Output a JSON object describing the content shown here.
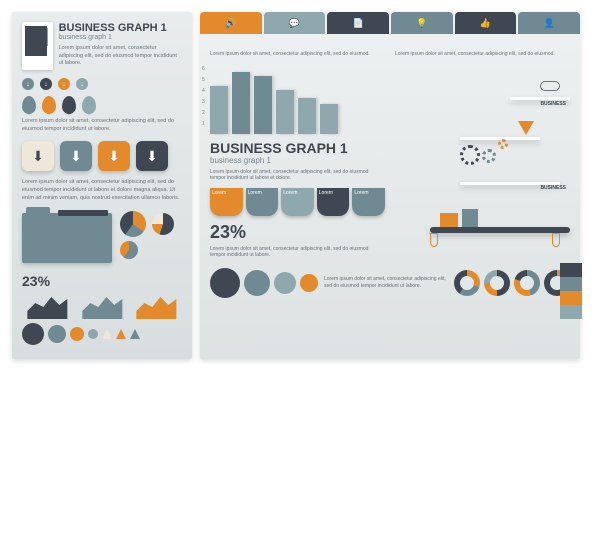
{
  "palette": {
    "dark": "#3f4852",
    "teal": "#6f8a92",
    "lteal": "#8fa8ae",
    "orange": "#e38b2c",
    "cream": "#efe8da",
    "bg": "#e2e7e8",
    "white": "#ffffff"
  },
  "left": {
    "title": "BUSINESS GRAPH 1",
    "subtitle": "business graph 1",
    "lorem": "Lorem ipsum dolor sit amet, consectetur adipiscing elit, sed do eiusmod tempor incididunt ut labore.",
    "dots": [
      {
        "c": "#6f8a92"
      },
      {
        "c": "#3f4852"
      },
      {
        "c": "#e38b2c"
      },
      {
        "c": "#8fa8ae"
      }
    ],
    "pins": [
      {
        "c": "#6f8a92"
      },
      {
        "c": "#e38b2c"
      },
      {
        "c": "#3f4852"
      },
      {
        "c": "#8fa8ae"
      }
    ],
    "buttons": [
      {
        "c": "#efe8da",
        "fg": "#3f4852"
      },
      {
        "c": "#6f8a92"
      },
      {
        "c": "#e38b2c"
      },
      {
        "c": "#3f4852"
      }
    ],
    "lorem2": "Lorem ipsum dolor sit amet, consectetur adipiscing elit, sed do eiusmod tempor incididunt ut labore et dolore magna aliqua. Ut enim ad minim veniam, quis nostrud exercitation ullamco laboris.",
    "pies": [
      {
        "size": 26,
        "slices": [
          [
            "#e38b2c",
            35
          ],
          [
            "#6f8a92",
            25
          ],
          [
            "#3f4852",
            40
          ]
        ]
      },
      {
        "size": 22,
        "slices": [
          [
            "#3f4852",
            55
          ],
          [
            "#e38b2c",
            20
          ],
          [
            "#efe8da",
            25
          ]
        ]
      },
      {
        "size": 18,
        "slices": [
          [
            "#6f8a92",
            60
          ],
          [
            "#e38b2c",
            40
          ]
        ]
      }
    ],
    "percent": "23%",
    "areas": [
      {
        "c": "#3f4852"
      },
      {
        "c": "#6f8a92"
      },
      {
        "c": "#e38b2c"
      }
    ],
    "bottom_circles": [
      {
        "size": 22,
        "c": "#3f4852"
      },
      {
        "size": 18,
        "c": "#6f8a92"
      },
      {
        "size": 14,
        "c": "#e38b2c"
      },
      {
        "size": 10,
        "c": "#8fa8ae"
      }
    ],
    "triangles": [
      {
        "c": "#efe8da"
      },
      {
        "c": "#e38b2c"
      },
      {
        "c": "#6f8a92"
      }
    ]
  },
  "right": {
    "tabs": [
      {
        "c": "#e38b2c",
        "i": "speaker"
      },
      {
        "c": "#8fa8ae",
        "i": "chat"
      },
      {
        "c": "#3f4852",
        "i": "doc"
      },
      {
        "c": "#6f8a92",
        "i": "bulb"
      },
      {
        "c": "#3f4852",
        "i": "thumb"
      },
      {
        "c": "#6f8a92",
        "i": "person"
      }
    ],
    "col_lorem": "Lorem ipsum dolor sit amet, consectetur adipiscing elit, sed do eiusmod.",
    "bars": {
      "labels": [
        "1",
        "2",
        "3",
        "4",
        "5",
        "6"
      ],
      "values": [
        48,
        62,
        58,
        44,
        36,
        30
      ],
      "colors": [
        "#8fa8ae",
        "#6f8a92",
        "#6f8a92",
        "#8fa8ae",
        "#8fa8ae",
        "#8fa8ae"
      ]
    },
    "title": "BUSINESS GRAPH 1",
    "subtitle": "business graph 1",
    "lorem": "Lorem ipsum dolor sit amet, consectetur adipiscing elit, sed do eiusmod tempor incididunt ut labore et dolore.",
    "labels": [
      {
        "c": "#e38b2c",
        "t": "Lorem"
      },
      {
        "c": "#6f8a92",
        "t": "Lorem"
      },
      {
        "c": "#8fa8ae",
        "t": "Lorem"
      },
      {
        "c": "#3f4852",
        "t": "Lorem"
      },
      {
        "c": "#6f8a92",
        "t": "Lorem"
      }
    ],
    "machine": {
      "b1": "BUSINESS",
      "b2": "BUSINESS"
    },
    "percent": "23%",
    "lorem3": "Lorem ipsum dolor sit amet, consectetur adipiscing elit, sed do eiusmod tempor incididunt ut labore.",
    "low_circles": [
      {
        "size": 30,
        "c": "#3f4852"
      },
      {
        "size": 26,
        "c": "#6f8a92"
      },
      {
        "size": 22,
        "c": "#8fa8ae"
      },
      {
        "size": 18,
        "c": "#e38b2c"
      }
    ],
    "donuts": [
      {
        "slices": [
          [
            "#e38b2c",
            30
          ],
          [
            "#6f8a92",
            30
          ],
          [
            "#3f4852",
            40
          ]
        ]
      },
      {
        "slices": [
          [
            "#3f4852",
            50
          ],
          [
            "#e38b2c",
            25
          ],
          [
            "#8fa8ae",
            25
          ]
        ]
      },
      {
        "slices": [
          [
            "#6f8a92",
            45
          ],
          [
            "#e38b2c",
            35
          ],
          [
            "#3f4852",
            20
          ]
        ]
      },
      {
        "slices": [
          [
            "#e38b2c",
            40
          ],
          [
            "#3f4852",
            60
          ]
        ]
      }
    ],
    "swatches": [
      "#3f4852",
      "#6f8a92",
      "#e38b2c",
      "#8fa8ae"
    ]
  }
}
